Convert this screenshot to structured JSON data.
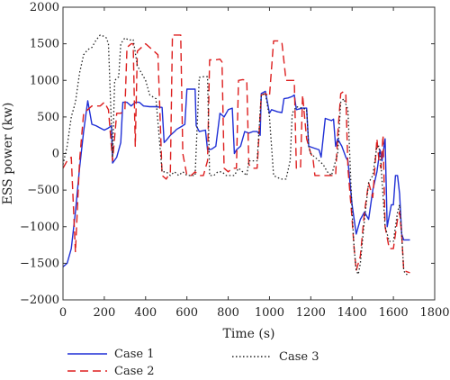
{
  "chart_data": {
    "type": "line",
    "xlabel": "Time (s)",
    "ylabel": "ESS power (kw)",
    "xlim": [
      0,
      1800
    ],
    "ylim": [
      -2000,
      2000
    ],
    "xticks": [
      0,
      200,
      400,
      600,
      800,
      1000,
      1200,
      1400,
      1600,
      1800
    ],
    "yticks": [
      -2000,
      -1500,
      -1000,
      -500,
      0,
      500,
      1000,
      1500,
      2000
    ],
    "grid": false,
    "legend_position": "bottom",
    "series": [
      {
        "name": "Case 1",
        "color": "#1f2fd6",
        "dash": "solid",
        "points": [
          [
            0,
            -1550
          ],
          [
            20,
            -1500
          ],
          [
            40,
            -1300
          ],
          [
            60,
            -800
          ],
          [
            80,
            -200
          ],
          [
            100,
            300
          ],
          [
            120,
            720
          ],
          [
            140,
            400
          ],
          [
            160,
            380
          ],
          [
            180,
            350
          ],
          [
            200,
            320
          ],
          [
            220,
            350
          ],
          [
            235,
            380
          ],
          [
            240,
            -130
          ],
          [
            260,
            -50
          ],
          [
            280,
            150
          ],
          [
            290,
            700
          ],
          [
            310,
            700
          ],
          [
            330,
            650
          ],
          [
            350,
            700
          ],
          [
            370,
            700
          ],
          [
            390,
            650
          ],
          [
            420,
            640
          ],
          [
            450,
            640
          ],
          [
            480,
            630
          ],
          [
            490,
            150
          ],
          [
            500,
            180
          ],
          [
            520,
            250
          ],
          [
            540,
            300
          ],
          [
            550,
            330
          ],
          [
            580,
            380
          ],
          [
            590,
            400
          ],
          [
            600,
            880
          ],
          [
            620,
            880
          ],
          [
            640,
            880
          ],
          [
            645,
            380
          ],
          [
            660,
            300
          ],
          [
            690,
            320
          ],
          [
            700,
            50
          ],
          [
            720,
            60
          ],
          [
            740,
            100
          ],
          [
            760,
            550
          ],
          [
            780,
            500
          ],
          [
            800,
            600
          ],
          [
            820,
            620
          ],
          [
            830,
            0
          ],
          [
            840,
            50
          ],
          [
            860,
            100
          ],
          [
            880,
            300
          ],
          [
            900,
            280
          ],
          [
            920,
            300
          ],
          [
            940,
            300
          ],
          [
            955,
            250
          ],
          [
            960,
            820
          ],
          [
            980,
            850
          ],
          [
            1000,
            550
          ],
          [
            1010,
            600
          ],
          [
            1040,
            570
          ],
          [
            1060,
            560
          ],
          [
            1070,
            750
          ],
          [
            1090,
            760
          ],
          [
            1110,
            780
          ],
          [
            1120,
            800
          ],
          [
            1130,
            600
          ],
          [
            1160,
            620
          ],
          [
            1180,
            620
          ],
          [
            1190,
            100
          ],
          [
            1210,
            80
          ],
          [
            1240,
            50
          ],
          [
            1250,
            -50
          ],
          [
            1270,
            480
          ],
          [
            1300,
            450
          ],
          [
            1310,
            470
          ],
          [
            1320,
            100
          ],
          [
            1330,
            200
          ],
          [
            1350,
            100
          ],
          [
            1370,
            -50
          ],
          [
            1380,
            -100
          ],
          [
            1400,
            -700
          ],
          [
            1420,
            -1100
          ],
          [
            1440,
            -900
          ],
          [
            1460,
            -800
          ],
          [
            1480,
            -900
          ],
          [
            1500,
            -500
          ],
          [
            1520,
            -250
          ],
          [
            1535,
            50
          ],
          [
            1545,
            -100
          ],
          [
            1560,
            200
          ],
          [
            1570,
            -1000
          ],
          [
            1590,
            -700
          ],
          [
            1600,
            -700
          ],
          [
            1610,
            -300
          ],
          [
            1620,
            -300
          ],
          [
            1630,
            -550
          ],
          [
            1640,
            -1100
          ],
          [
            1650,
            -1180
          ],
          [
            1660,
            -1180
          ],
          [
            1680,
            -1180
          ]
        ]
      },
      {
        "name": "Case 2",
        "color": "#dd1f1f",
        "dash": "9,5",
        "points": [
          [
            0,
            -200
          ],
          [
            20,
            -100
          ],
          [
            40,
            -50
          ],
          [
            60,
            -1350
          ],
          [
            80,
            -100
          ],
          [
            100,
            550
          ],
          [
            120,
            600
          ],
          [
            140,
            650
          ],
          [
            160,
            650
          ],
          [
            180,
            650
          ],
          [
            200,
            700
          ],
          [
            220,
            600
          ],
          [
            240,
            -100
          ],
          [
            260,
            550
          ],
          [
            280,
            550
          ],
          [
            300,
            600
          ],
          [
            310,
            1450
          ],
          [
            330,
            1500
          ],
          [
            340,
            1500
          ],
          [
            350,
            100
          ],
          [
            360,
            1400
          ],
          [
            380,
            1450
          ],
          [
            400,
            1500
          ],
          [
            420,
            1450
          ],
          [
            440,
            1400
          ],
          [
            460,
            1350
          ],
          [
            480,
            -300
          ],
          [
            500,
            -350
          ],
          [
            520,
            -250
          ],
          [
            530,
            1620
          ],
          [
            550,
            1620
          ],
          [
            570,
            1620
          ],
          [
            580,
            0
          ],
          [
            600,
            -300
          ],
          [
            620,
            -300
          ],
          [
            640,
            -250
          ],
          [
            660,
            -300
          ],
          [
            680,
            -300
          ],
          [
            700,
            -100
          ],
          [
            710,
            1280
          ],
          [
            740,
            1280
          ],
          [
            760,
            1290
          ],
          [
            770,
            1250
          ],
          [
            780,
            -200
          ],
          [
            800,
            -250
          ],
          [
            820,
            -200
          ],
          [
            840,
            -200
          ],
          [
            850,
            1000
          ],
          [
            870,
            1010
          ],
          [
            890,
            1000
          ],
          [
            900,
            -150
          ],
          [
            920,
            -200
          ],
          [
            940,
            -200
          ],
          [
            960,
            800
          ],
          [
            980,
            820
          ],
          [
            1000,
            780
          ],
          [
            1020,
            1540
          ],
          [
            1040,
            1540
          ],
          [
            1060,
            1520
          ],
          [
            1080,
            1000
          ],
          [
            1100,
            1000
          ],
          [
            1120,
            1000
          ],
          [
            1130,
            -200
          ],
          [
            1150,
            -200
          ],
          [
            1160,
            800
          ],
          [
            1180,
            200
          ],
          [
            1200,
            0
          ],
          [
            1210,
            -50
          ],
          [
            1220,
            -300
          ],
          [
            1240,
            -300
          ],
          [
            1260,
            -300
          ],
          [
            1280,
            -300
          ],
          [
            1300,
            -300
          ],
          [
            1320,
            -300
          ],
          [
            1330,
            250
          ],
          [
            1345,
            820
          ],
          [
            1360,
            850
          ],
          [
            1370,
            800
          ],
          [
            1380,
            -200
          ],
          [
            1400,
            -900
          ],
          [
            1410,
            -1300
          ],
          [
            1420,
            -1600
          ],
          [
            1430,
            -1500
          ],
          [
            1440,
            -1400
          ],
          [
            1460,
            -800
          ],
          [
            1480,
            -400
          ],
          [
            1500,
            -600
          ],
          [
            1520,
            200
          ],
          [
            1530,
            -100
          ],
          [
            1540,
            -200
          ],
          [
            1550,
            250
          ],
          [
            1560,
            -1000
          ],
          [
            1580,
            -1300
          ],
          [
            1600,
            -1300
          ],
          [
            1610,
            -1100
          ],
          [
            1620,
            -900
          ],
          [
            1630,
            -800
          ],
          [
            1640,
            -1100
          ],
          [
            1650,
            -1600
          ],
          [
            1670,
            -1620
          ],
          [
            1680,
            -1630
          ]
        ]
      },
      {
        "name": "Case 3",
        "color": "#222222",
        "dash": "1.5,2.5",
        "points": [
          [
            0,
            -150
          ],
          [
            20,
            100
          ],
          [
            40,
            500
          ],
          [
            60,
            700
          ],
          [
            80,
            1100
          ],
          [
            100,
            1350
          ],
          [
            120,
            1420
          ],
          [
            140,
            1450
          ],
          [
            160,
            1550
          ],
          [
            180,
            1620
          ],
          [
            200,
            1600
          ],
          [
            210,
            1580
          ],
          [
            220,
            1500
          ],
          [
            240,
            -50
          ],
          [
            250,
            1000
          ],
          [
            270,
            1050
          ],
          [
            280,
            1500
          ],
          [
            300,
            1580
          ],
          [
            320,
            1550
          ],
          [
            340,
            1560
          ],
          [
            360,
            1200
          ],
          [
            380,
            1100
          ],
          [
            400,
            1000
          ],
          [
            420,
            800
          ],
          [
            450,
            750
          ],
          [
            480,
            -250
          ],
          [
            500,
            -250
          ],
          [
            520,
            -300
          ],
          [
            540,
            -250
          ],
          [
            560,
            -300
          ],
          [
            580,
            -250
          ],
          [
            600,
            -300
          ],
          [
            620,
            -300
          ],
          [
            640,
            -300
          ],
          [
            660,
            1040
          ],
          [
            680,
            1050
          ],
          [
            700,
            1050
          ],
          [
            710,
            -300
          ],
          [
            730,
            -300
          ],
          [
            750,
            -250
          ],
          [
            770,
            -250
          ],
          [
            790,
            -300
          ],
          [
            810,
            -300
          ],
          [
            830,
            -300
          ],
          [
            850,
            -200
          ],
          [
            870,
            -250
          ],
          [
            890,
            -300
          ],
          [
            900,
            -100
          ],
          [
            910,
            -100
          ],
          [
            920,
            -100
          ],
          [
            940,
            -100
          ],
          [
            960,
            800
          ],
          [
            980,
            820
          ],
          [
            1000,
            500
          ],
          [
            1020,
            -300
          ],
          [
            1040,
            -330
          ],
          [
            1060,
            -350
          ],
          [
            1080,
            -350
          ],
          [
            1100,
            -100
          ],
          [
            1110,
            550
          ],
          [
            1130,
            640
          ],
          [
            1160,
            620
          ],
          [
            1180,
            600
          ],
          [
            1190,
            100
          ],
          [
            1200,
            0
          ],
          [
            1220,
            -50
          ],
          [
            1240,
            -100
          ],
          [
            1260,
            -150
          ],
          [
            1280,
            -250
          ],
          [
            1300,
            -300
          ],
          [
            1310,
            -200
          ],
          [
            1330,
            0
          ],
          [
            1345,
            700
          ],
          [
            1360,
            750
          ],
          [
            1380,
            600
          ],
          [
            1400,
            -800
          ],
          [
            1410,
            -1300
          ],
          [
            1420,
            -1600
          ],
          [
            1430,
            -1650
          ],
          [
            1440,
            -1500
          ],
          [
            1460,
            -900
          ],
          [
            1480,
            -400
          ],
          [
            1500,
            -300
          ],
          [
            1520,
            100
          ],
          [
            1530,
            100
          ],
          [
            1540,
            -150
          ],
          [
            1560,
            -1000
          ],
          [
            1580,
            -1200
          ],
          [
            1600,
            -1200
          ],
          [
            1610,
            -1000
          ],
          [
            1620,
            -800
          ],
          [
            1630,
            -700
          ],
          [
            1640,
            -1100
          ],
          [
            1650,
            -1600
          ],
          [
            1660,
            -1650
          ],
          [
            1670,
            -1650
          ]
        ]
      }
    ]
  }
}
